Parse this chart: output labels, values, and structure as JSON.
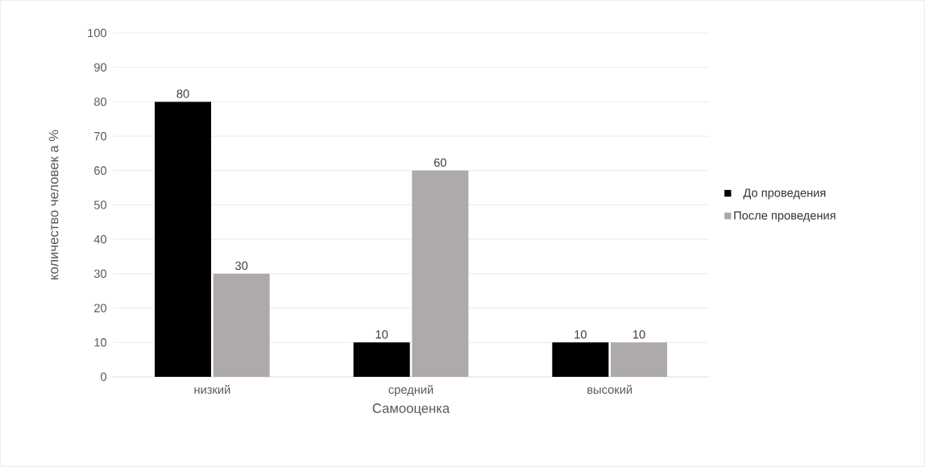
{
  "chart_data": {
    "type": "bar",
    "xlabel": "Самооценка",
    "ylabel": "количество человек а %",
    "categories": [
      "низкий",
      "средний",
      "высокий"
    ],
    "series": [
      {
        "name": "До проведения",
        "color": "#000000",
        "values": [
          80,
          10,
          10
        ]
      },
      {
        "name": "После проведения",
        "color": "#aeaaaa",
        "values": [
          30,
          60,
          10
        ]
      }
    ],
    "ylim": [
      0,
      100
    ],
    "yticks": [
      0,
      10,
      20,
      30,
      40,
      50,
      60,
      70,
      80,
      90,
      100
    ],
    "grid": "y",
    "legend": "right",
    "data_labels": true
  }
}
